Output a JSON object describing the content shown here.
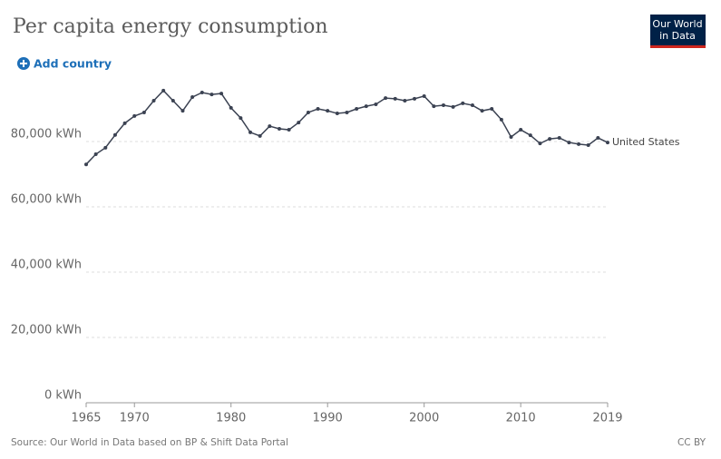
{
  "chart_data": {
    "type": "line",
    "title": "Per capita energy consumption",
    "x": [
      1965,
      1966,
      1967,
      1968,
      1969,
      1970,
      1971,
      1972,
      1973,
      1974,
      1975,
      1976,
      1977,
      1978,
      1979,
      1980,
      1981,
      1982,
      1983,
      1984,
      1985,
      1986,
      1987,
      1988,
      1989,
      1990,
      1991,
      1992,
      1993,
      1994,
      1995,
      1996,
      1997,
      1998,
      1999,
      2000,
      2001,
      2002,
      2003,
      2004,
      2005,
      2006,
      2007,
      2008,
      2009,
      2010,
      2011,
      2012,
      2013,
      2014,
      2015,
      2016,
      2017,
      2018,
      2019
    ],
    "series": [
      {
        "name": "United States",
        "color": "#3b4252",
        "values": [
          73000,
          76100,
          78100,
          82000,
          85600,
          87800,
          88900,
          92500,
          95600,
          92500,
          89400,
          93600,
          95000,
          94400,
          94700,
          90300,
          87200,
          82800,
          81700,
          84700,
          83900,
          83600,
          85800,
          88900,
          90000,
          89400,
          88600,
          88900,
          90000,
          90800,
          91400,
          93300,
          93100,
          92500,
          93100,
          93900,
          90800,
          91100,
          90600,
          91700,
          91100,
          89400,
          90000,
          86700,
          81400,
          83600,
          81900,
          79400,
          80800,
          81100,
          79700,
          79200,
          78900,
          81100,
          79700
        ]
      }
    ],
    "xlim": [
      1965,
      2019
    ],
    "xticks": [
      1965,
      1970,
      1980,
      1990,
      2000,
      2010,
      2019
    ],
    "ylim": [
      0,
      100000
    ],
    "yticks": [
      {
        "value": 0,
        "label": "0 kWh"
      },
      {
        "value": 20000,
        "label": "20,000 kWh"
      },
      {
        "value": 40000,
        "label": "40,000 kWh"
      },
      {
        "value": 60000,
        "label": "60,000 kWh"
      },
      {
        "value": 80000,
        "label": "80,000 kWh"
      }
    ],
    "grid": true
  },
  "ui": {
    "button": "Add country",
    "logo": [
      "Our World",
      "in Data"
    ],
    "source": "Source: Our World in Data based on BP & Shift Data Portal",
    "license": "CC BY"
  }
}
